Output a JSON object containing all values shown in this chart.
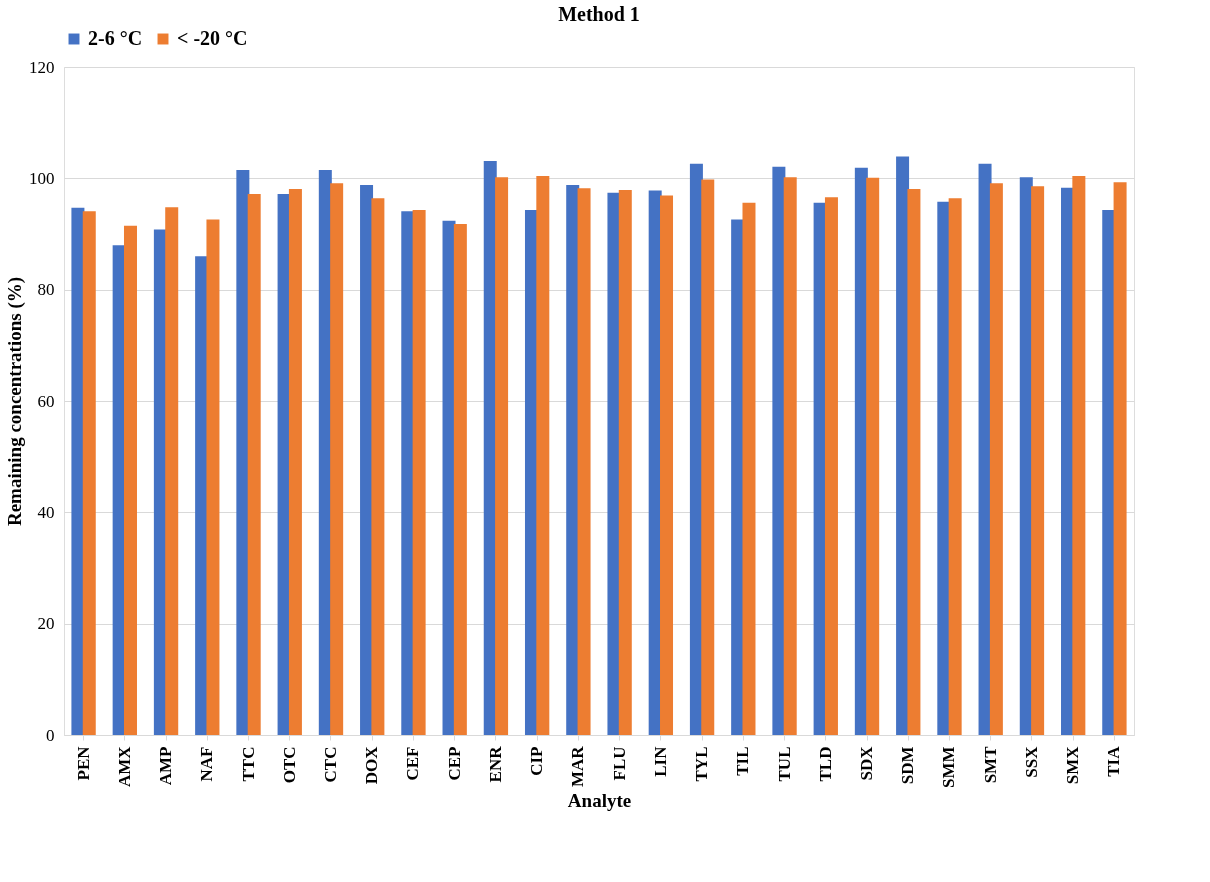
{
  "chart_data": {
    "type": "bar",
    "title": "Method 1",
    "xlabel": "Analyte",
    "ylabel": "Remaining concentrations (%)",
    "categories": [
      "PEN",
      "AMX",
      "AMP",
      "NAF",
      "TTC",
      "OTC",
      "CTC",
      "DOX",
      "CEF",
      "CEP",
      "ENR",
      "CIP",
      "MAR",
      "FLU",
      "LIN",
      "TYL",
      "TIL",
      "TUL",
      "TLD",
      "SDX",
      "SDM",
      "SMM",
      "SMT",
      "SSX",
      "SMX",
      "TIA"
    ],
    "series": [
      {
        "name": "2-6 °C",
        "color": "#4472c4",
        "values": [
          94.7,
          88.0,
          90.8,
          86.0,
          101.5,
          97.2,
          101.5,
          98.8,
          94.1,
          92.4,
          103.1,
          94.3,
          98.8,
          97.4,
          97.8,
          102.6,
          92.6,
          102.1,
          95.6,
          101.9,
          103.9,
          95.8,
          102.6,
          100.2,
          98.3,
          94.3
        ]
      },
      {
        "name": "< -20 °C",
        "color": "#ed7d31",
        "values": [
          94.1,
          91.5,
          94.8,
          92.6,
          97.2,
          98.1,
          99.1,
          96.4,
          94.3,
          91.8,
          100.2,
          100.4,
          98.2,
          97.9,
          96.9,
          99.8,
          95.6,
          100.2,
          96.6,
          100.1,
          98.1,
          96.4,
          99.1,
          98.6,
          100.4,
          99.3
        ]
      }
    ],
    "ylim": [
      0,
      120
    ],
    "yticks": [
      0,
      20,
      40,
      60,
      80,
      100,
      120
    ],
    "grid": "y",
    "legend": "top"
  }
}
